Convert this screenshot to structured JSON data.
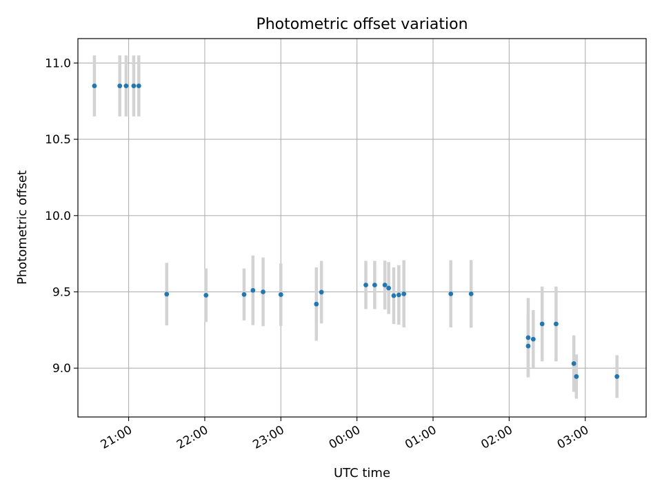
{
  "chart_data": {
    "type": "scatter",
    "title": "Photometric offset variation",
    "xlabel": "UTC time",
    "ylabel": "Photometric offset",
    "x_axis": {
      "kind": "time",
      "start_date": "2023-01-01",
      "range": [
        "20:20",
        "03:48+1"
      ],
      "ticks": [
        "21:00",
        "22:00",
        "23:00",
        "00:00",
        "01:00",
        "02:00",
        "03:00"
      ]
    },
    "ylim": [
      8.68,
      11.16
    ],
    "yticks": [
      9.0,
      9.5,
      10.0,
      10.5,
      11.0
    ],
    "grid": true,
    "colors": {
      "marker": "#1f77b4",
      "errorbar": "#d3d3d3",
      "grid": "#b0b0b0"
    },
    "points": [
      {
        "t": "20:33",
        "y": 10.85,
        "err": 0.2
      },
      {
        "t": "20:53",
        "y": 10.85,
        "err": 0.2
      },
      {
        "t": "20:58",
        "y": 10.85,
        "err": 0.2
      },
      {
        "t": "21:04",
        "y": 10.85,
        "err": 0.2
      },
      {
        "t": "21:08",
        "y": 10.85,
        "err": 0.2
      },
      {
        "t": "21:30",
        "y": 9.485,
        "err": 0.205
      },
      {
        "t": "22:01",
        "y": 9.478,
        "err": 0.175
      },
      {
        "t": "22:31",
        "y": 9.483,
        "err": 0.17
      },
      {
        "t": "22:38",
        "y": 9.51,
        "err": 0.228
      },
      {
        "t": "22:46",
        "y": 9.5,
        "err": 0.225
      },
      {
        "t": "23:00",
        "y": 9.482,
        "err": 0.205
      },
      {
        "t": "23:28",
        "y": 9.42,
        "err": 0.24
      },
      {
        "t": "23:32",
        "y": 9.498,
        "err": 0.205
      },
      {
        "t": "00:07",
        "y": 9.545,
        "err": 0.158
      },
      {
        "t": "00:14",
        "y": 9.545,
        "err": 0.158
      },
      {
        "t": "00:22",
        "y": 9.545,
        "err": 0.16
      },
      {
        "t": "00:25",
        "y": 9.525,
        "err": 0.17
      },
      {
        "t": "00:29",
        "y": 9.475,
        "err": 0.185
      },
      {
        "t": "00:33",
        "y": 9.48,
        "err": 0.195
      },
      {
        "t": "00:37",
        "y": 9.487,
        "err": 0.22
      },
      {
        "t": "01:14",
        "y": 9.487,
        "err": 0.22
      },
      {
        "t": "01:30",
        "y": 9.487,
        "err": 0.222
      },
      {
        "t": "02:15",
        "y": 9.2,
        "err": 0.26
      },
      {
        "t": "02:15",
        "y": 9.145,
        "err": 0.205
      },
      {
        "t": "02:19",
        "y": 9.19,
        "err": 0.19
      },
      {
        "t": "02:26",
        "y": 9.29,
        "err": 0.245
      },
      {
        "t": "02:37",
        "y": 9.29,
        "err": 0.245
      },
      {
        "t": "02:51",
        "y": 9.03,
        "err": 0.185
      },
      {
        "t": "02:53",
        "y": 8.945,
        "err": 0.145
      },
      {
        "t": "03:25",
        "y": 8.945,
        "err": 0.14
      }
    ]
  }
}
